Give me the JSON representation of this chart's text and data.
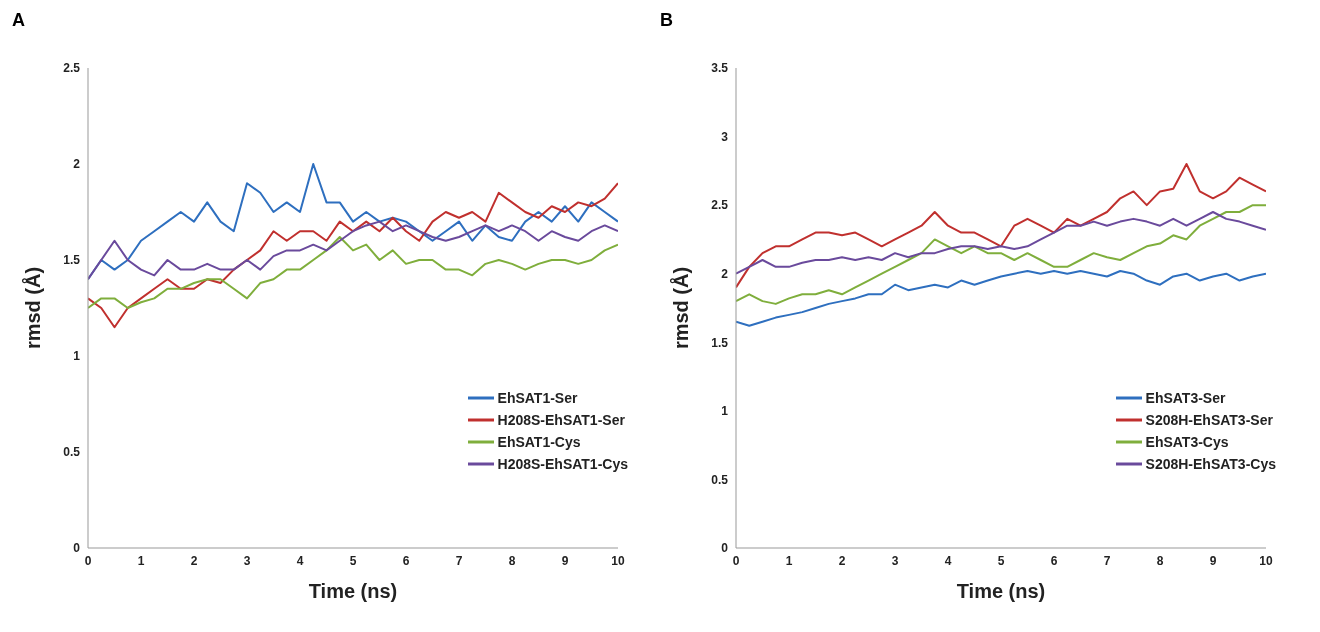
{
  "chart_data": [
    {
      "type": "line",
      "title": "A",
      "xlabel": "Time (ns)",
      "ylabel": "rmsd (Å)",
      "x": [
        0,
        0.25,
        0.5,
        0.75,
        1,
        1.25,
        1.5,
        1.75,
        2,
        2.25,
        2.5,
        2.75,
        3,
        3.25,
        3.5,
        3.75,
        4,
        4.25,
        4.5,
        4.75,
        5,
        5.25,
        5.5,
        5.75,
        6,
        6.25,
        6.5,
        6.75,
        7,
        7.25,
        7.5,
        7.75,
        8,
        8.25,
        8.5,
        8.75,
        9,
        9.25,
        9.5,
        9.75,
        10
      ],
      "xlim": [
        0,
        10
      ],
      "xticks": [
        0,
        1,
        2,
        3,
        4,
        5,
        6,
        7,
        8,
        9,
        10
      ],
      "ylim": [
        0,
        2.5
      ],
      "yticks": [
        0,
        0.5,
        1,
        1.5,
        2,
        2.5
      ],
      "grid": false,
      "legend": "bottom right",
      "marker": "none",
      "line_style": "solid",
      "series": [
        {
          "name": "EhSAT1-Ser",
          "color": "#2e6fbf",
          "values": [
            1.4,
            1.5,
            1.45,
            1.5,
            1.6,
            1.65,
            1.7,
            1.75,
            1.7,
            1.8,
            1.7,
            1.65,
            1.9,
            1.85,
            1.75,
            1.8,
            1.75,
            2.0,
            1.8,
            1.8,
            1.7,
            1.75,
            1.7,
            1.72,
            1.7,
            1.65,
            1.6,
            1.65,
            1.7,
            1.6,
            1.68,
            1.62,
            1.6,
            1.7,
            1.75,
            1.7,
            1.78,
            1.7,
            1.8,
            1.75,
            1.7
          ]
        },
        {
          "name": "H208S-EhSAT1-Ser",
          "color": "#c0302e",
          "values": [
            1.3,
            1.25,
            1.15,
            1.25,
            1.3,
            1.35,
            1.4,
            1.35,
            1.35,
            1.4,
            1.38,
            1.45,
            1.5,
            1.55,
            1.65,
            1.6,
            1.65,
            1.65,
            1.6,
            1.7,
            1.65,
            1.7,
            1.65,
            1.72,
            1.65,
            1.6,
            1.7,
            1.75,
            1.72,
            1.75,
            1.7,
            1.85,
            1.8,
            1.75,
            1.72,
            1.78,
            1.75,
            1.8,
            1.78,
            1.82,
            1.9
          ]
        },
        {
          "name": "EhSAT1-Cys",
          "color": "#7fae3c",
          "values": [
            1.25,
            1.3,
            1.3,
            1.25,
            1.28,
            1.3,
            1.35,
            1.35,
            1.38,
            1.4,
            1.4,
            1.35,
            1.3,
            1.38,
            1.4,
            1.45,
            1.45,
            1.5,
            1.55,
            1.62,
            1.55,
            1.58,
            1.5,
            1.55,
            1.48,
            1.5,
            1.5,
            1.45,
            1.45,
            1.42,
            1.48,
            1.5,
            1.48,
            1.45,
            1.48,
            1.5,
            1.5,
            1.48,
            1.5,
            1.55,
            1.58
          ]
        },
        {
          "name": "H208S-EhSAT1-Cys",
          "color": "#6a4a9c",
          "values": [
            1.4,
            1.5,
            1.6,
            1.5,
            1.45,
            1.42,
            1.5,
            1.45,
            1.45,
            1.48,
            1.45,
            1.45,
            1.5,
            1.45,
            1.52,
            1.55,
            1.55,
            1.58,
            1.55,
            1.6,
            1.65,
            1.68,
            1.7,
            1.65,
            1.68,
            1.65,
            1.62,
            1.6,
            1.62,
            1.65,
            1.68,
            1.65,
            1.68,
            1.65,
            1.6,
            1.65,
            1.62,
            1.6,
            1.65,
            1.68,
            1.65
          ]
        }
      ]
    },
    {
      "type": "line",
      "title": "B",
      "xlabel": "Time (ns)",
      "ylabel": "rmsd (Å)",
      "x": [
        0,
        0.25,
        0.5,
        0.75,
        1,
        1.25,
        1.5,
        1.75,
        2,
        2.25,
        2.5,
        2.75,
        3,
        3.25,
        3.5,
        3.75,
        4,
        4.25,
        4.5,
        4.75,
        5,
        5.25,
        5.5,
        5.75,
        6,
        6.25,
        6.5,
        6.75,
        7,
        7.25,
        7.5,
        7.75,
        8,
        8.25,
        8.5,
        8.75,
        9,
        9.25,
        9.5,
        9.75,
        10
      ],
      "xlim": [
        0,
        10
      ],
      "xticks": [
        0,
        1,
        2,
        3,
        4,
        5,
        6,
        7,
        8,
        9,
        10
      ],
      "ylim": [
        0,
        3.5
      ],
      "yticks": [
        0,
        0.5,
        1,
        1.5,
        2,
        2.5,
        3,
        3.5
      ],
      "grid": false,
      "legend": "bottom right",
      "marker": "none",
      "line_style": "solid",
      "series": [
        {
          "name": "EhSAT3-Ser",
          "color": "#2e6fbf",
          "values": [
            1.65,
            1.62,
            1.65,
            1.68,
            1.7,
            1.72,
            1.75,
            1.78,
            1.8,
            1.82,
            1.85,
            1.85,
            1.92,
            1.88,
            1.9,
            1.92,
            1.9,
            1.95,
            1.92,
            1.95,
            1.98,
            2.0,
            2.02,
            2.0,
            2.02,
            2.0,
            2.02,
            2.0,
            1.98,
            2.02,
            2.0,
            1.95,
            1.92,
            1.98,
            2.0,
            1.95,
            1.98,
            2.0,
            1.95,
            1.98,
            2.0
          ]
        },
        {
          "name": "S208H-EhSAT3-Ser",
          "color": "#c0302e",
          "values": [
            1.9,
            2.05,
            2.15,
            2.2,
            2.2,
            2.25,
            2.3,
            2.3,
            2.28,
            2.3,
            2.25,
            2.2,
            2.25,
            2.3,
            2.35,
            2.45,
            2.35,
            2.3,
            2.3,
            2.25,
            2.2,
            2.35,
            2.4,
            2.35,
            2.3,
            2.4,
            2.35,
            2.4,
            2.45,
            2.55,
            2.6,
            2.5,
            2.6,
            2.62,
            2.8,
            2.6,
            2.55,
            2.6,
            2.7,
            2.65,
            2.6
          ]
        },
        {
          "name": "EhSAT3-Cys",
          "color": "#7fae3c",
          "values": [
            1.8,
            1.85,
            1.8,
            1.78,
            1.82,
            1.85,
            1.85,
            1.88,
            1.85,
            1.9,
            1.95,
            2.0,
            2.05,
            2.1,
            2.15,
            2.25,
            2.2,
            2.15,
            2.2,
            2.15,
            2.15,
            2.1,
            2.15,
            2.1,
            2.05,
            2.05,
            2.1,
            2.15,
            2.12,
            2.1,
            2.15,
            2.2,
            2.22,
            2.28,
            2.25,
            2.35,
            2.4,
            2.45,
            2.45,
            2.5,
            2.5
          ]
        },
        {
          "name": "S208H-EhSAT3-Cys",
          "color": "#6a4a9c",
          "values": [
            2.0,
            2.05,
            2.1,
            2.05,
            2.05,
            2.08,
            2.1,
            2.1,
            2.12,
            2.1,
            2.12,
            2.1,
            2.15,
            2.12,
            2.15,
            2.15,
            2.18,
            2.2,
            2.2,
            2.18,
            2.2,
            2.18,
            2.2,
            2.25,
            2.3,
            2.35,
            2.35,
            2.38,
            2.35,
            2.38,
            2.4,
            2.38,
            2.35,
            2.4,
            2.35,
            2.4,
            2.45,
            2.4,
            2.38,
            2.35,
            2.32
          ]
        }
      ]
    }
  ]
}
